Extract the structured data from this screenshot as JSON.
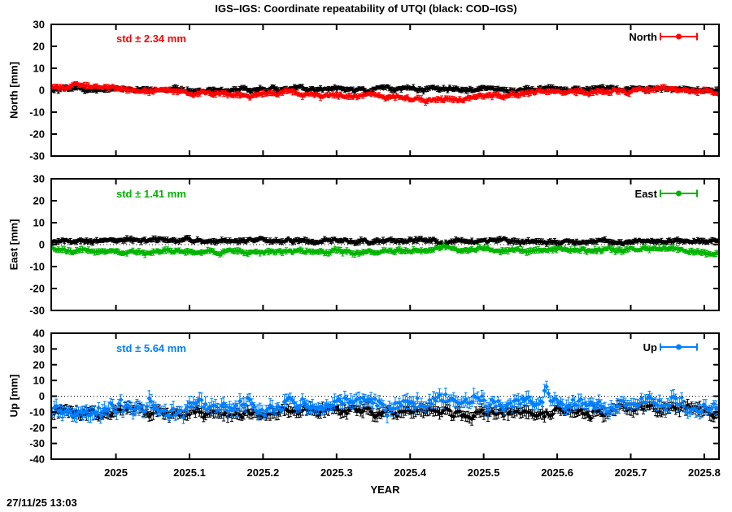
{
  "title": "IGS–IGS: Coordinate repeatability of UTQI (black: COD–IGS)",
  "timestamp": "27/11/25 13:03",
  "x_axis": {
    "label": "YEAR",
    "ticks": [
      2025.0,
      2025.1,
      2025.2,
      2025.3,
      2025.4,
      2025.5,
      2025.6,
      2025.7,
      2025.8
    ],
    "tick_labels": [
      "2025",
      "2025.1",
      "2025.2",
      "2025.3",
      "2025.4",
      "2025.5",
      "2025.6",
      "2025.7",
      "2025.8"
    ],
    "xlim": [
      2024.912,
      2025.82
    ]
  },
  "chart_data": [
    {
      "type": "scatter",
      "panel": "North",
      "ylabel": "North [mm]",
      "std_label": "std ± 2.34 mm",
      "legend": "North",
      "color": "#ff0000",
      "ylim": [
        -30,
        30
      ],
      "yticks": [
        -30,
        -20,
        -10,
        0,
        10,
        20,
        30
      ],
      "ytick_labels": [
        "-30",
        "-20",
        "-10",
        "0",
        "10",
        "20",
        "30"
      ],
      "zero_line": true,
      "points_per_year": 365,
      "series": [
        {
          "name": "COD-IGS",
          "color": "#000000",
          "sigma": 0.5,
          "err": 1.0,
          "seed": 101,
          "anchors": [
            [
              2024.912,
              0.2
            ],
            [
              2025.05,
              0.6
            ],
            [
              2025.15,
              0.3
            ],
            [
              2025.3,
              0.8
            ],
            [
              2025.45,
              0.4
            ],
            [
              2025.6,
              0.6
            ],
            [
              2025.75,
              0.7
            ],
            [
              2025.82,
              0.3
            ]
          ]
        },
        {
          "name": "IGS-IGS",
          "color": "#ff0000",
          "sigma": 0.55,
          "err": 1.1,
          "seed": 102,
          "anchors": [
            [
              2024.912,
              1.6
            ],
            [
              2024.96,
              2.2
            ],
            [
              2025.0,
              1.2
            ],
            [
              2025.03,
              -1.2
            ],
            [
              2025.07,
              -0.6
            ],
            [
              2025.12,
              -1.6
            ],
            [
              2025.18,
              -2.0
            ],
            [
              2025.24,
              -1.2
            ],
            [
              2025.3,
              -2.4
            ],
            [
              2025.36,
              -2.6
            ],
            [
              2025.42,
              -4.6
            ],
            [
              2025.47,
              -3.4
            ],
            [
              2025.53,
              -2.0
            ],
            [
              2025.58,
              -0.8
            ],
            [
              2025.64,
              -1.2
            ],
            [
              2025.7,
              -0.3
            ],
            [
              2025.75,
              1.2
            ],
            [
              2025.79,
              -0.6
            ],
            [
              2025.82,
              -2.0
            ]
          ]
        }
      ]
    },
    {
      "type": "scatter",
      "panel": "East",
      "ylabel": "East [mm]",
      "std_label": "std ± 1.41 mm",
      "legend": "East",
      "color": "#00b400",
      "ylim": [
        -30,
        30
      ],
      "yticks": [
        -30,
        -20,
        -10,
        0,
        10,
        20,
        30
      ],
      "ytick_labels": [
        "-30",
        "-20",
        "-10",
        "0",
        "10",
        "20",
        "30"
      ],
      "zero_line": true,
      "points_per_year": 365,
      "series": [
        {
          "name": "COD-IGS",
          "color": "#000000",
          "sigma": 0.5,
          "err": 1.0,
          "seed": 201,
          "anchors": [
            [
              2024.912,
              1.6
            ],
            [
              2025.2,
              1.9
            ],
            [
              2025.5,
              1.7
            ],
            [
              2025.82,
              1.6
            ]
          ]
        },
        {
          "name": "IGS-IGS",
          "color": "#00b400",
          "sigma": 0.55,
          "err": 1.1,
          "seed": 202,
          "anchors": [
            [
              2024.912,
              -2.2
            ],
            [
              2024.98,
              -3.6
            ],
            [
              2025.08,
              -3.0
            ],
            [
              2025.16,
              -3.8
            ],
            [
              2025.24,
              -3.0
            ],
            [
              2025.32,
              -3.6
            ],
            [
              2025.4,
              -3.2
            ],
            [
              2025.46,
              -1.6
            ],
            [
              2025.52,
              -3.0
            ],
            [
              2025.6,
              -2.2
            ],
            [
              2025.68,
              -3.0
            ],
            [
              2025.74,
              -1.8
            ],
            [
              2025.8,
              -3.0
            ],
            [
              2025.82,
              -3.4
            ]
          ]
        }
      ]
    },
    {
      "type": "scatter",
      "panel": "Up",
      "ylabel": "Up [mm]",
      "std_label": "std ± 5.64 mm",
      "legend": "Up",
      "color": "#0080ff",
      "ylim": [
        -40,
        40
      ],
      "yticks": [
        -40,
        -30,
        -20,
        -10,
        0,
        10,
        20,
        30,
        40
      ],
      "ytick_labels": [
        "-40",
        "-30",
        "-20",
        "-10",
        "0",
        "10",
        "20",
        "30",
        "40"
      ],
      "zero_line": true,
      "points_per_year": 365,
      "series": [
        {
          "name": "COD-IGS",
          "color": "#000000",
          "sigma": 1.9,
          "err": 3.0,
          "seed": 301,
          "anchors": [
            [
              2024.912,
              -11
            ],
            [
              2025.0,
              -9.5
            ],
            [
              2025.08,
              -10
            ],
            [
              2025.16,
              -9
            ],
            [
              2025.26,
              -10
            ],
            [
              2025.34,
              -9
            ],
            [
              2025.44,
              -8.5
            ],
            [
              2025.52,
              -10.5
            ],
            [
              2025.6,
              -10
            ],
            [
              2025.68,
              -9
            ],
            [
              2025.74,
              -7.5
            ],
            [
              2025.8,
              -9
            ],
            [
              2025.82,
              -10
            ]
          ]
        },
        {
          "name": "IGS-IGS",
          "color": "#0080ff",
          "sigma": 2.6,
          "err": 3.5,
          "seed": 302,
          "anchors": [
            [
              2024.912,
              -12
            ],
            [
              2024.96,
              -9
            ],
            [
              2025.02,
              -6
            ],
            [
              2025.08,
              -7
            ],
            [
              2025.14,
              -7.5
            ],
            [
              2025.2,
              -4
            ],
            [
              2025.26,
              -6
            ],
            [
              2025.32,
              -3.5
            ],
            [
              2025.38,
              -5
            ],
            [
              2025.44,
              -2.5
            ],
            [
              2025.5,
              -4
            ],
            [
              2025.56,
              -2.5
            ],
            [
              2025.62,
              -4.5
            ],
            [
              2025.68,
              -6.5
            ],
            [
              2025.73,
              -2
            ],
            [
              2025.78,
              -4.5
            ],
            [
              2025.82,
              -6
            ]
          ]
        }
      ]
    }
  ]
}
